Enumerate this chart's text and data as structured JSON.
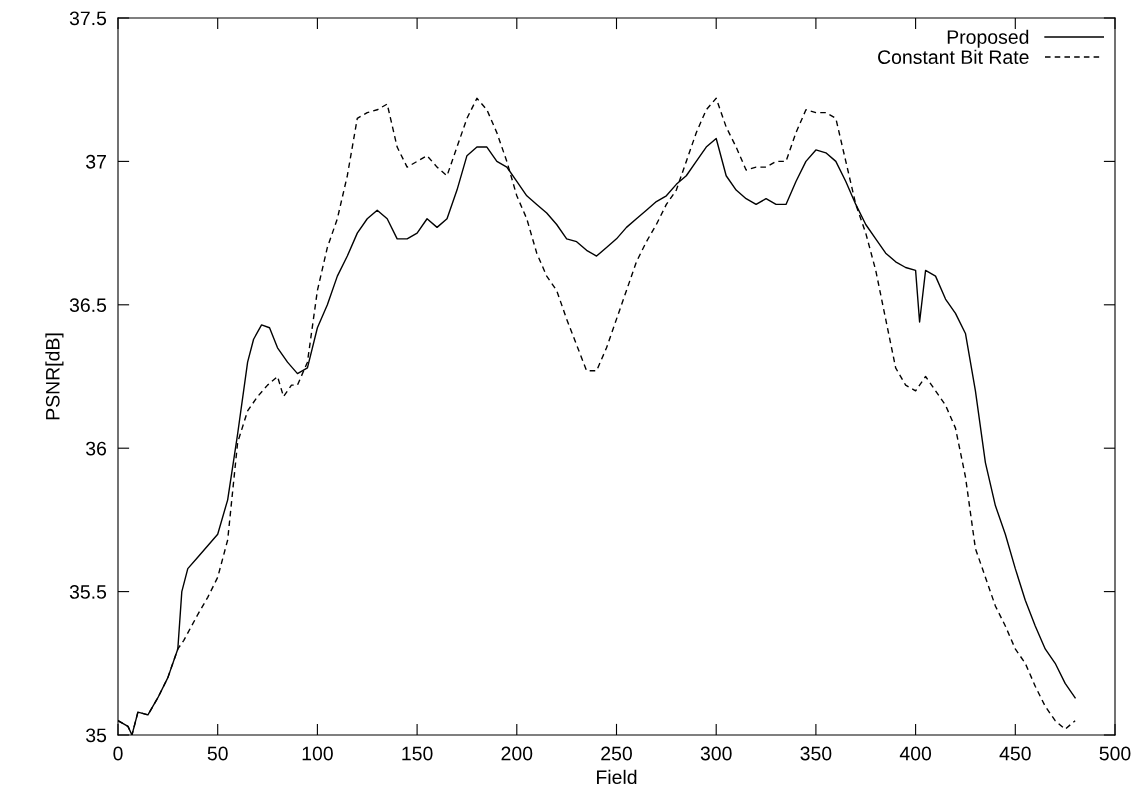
{
  "chart_data": {
    "type": "line",
    "xlabel": "Field",
    "ylabel": "PSNR[dB]",
    "xlim": [
      0,
      500
    ],
    "ylim": [
      35,
      37.5
    ],
    "xticks": [
      0,
      50,
      100,
      150,
      200,
      250,
      300,
      350,
      400,
      450,
      500
    ],
    "yticks": [
      35,
      35.5,
      36,
      36.5,
      37,
      37.5
    ],
    "grid": false,
    "legend": "top right",
    "marker": "none",
    "series": [
      {
        "name": "Proposed",
        "color": "#000000",
        "line_style": "solid",
        "x": [
          0,
          5,
          7,
          10,
          15,
          20,
          25,
          30,
          32,
          35,
          40,
          45,
          50,
          55,
          60,
          65,
          68,
          72,
          76,
          80,
          85,
          90,
          95,
          100,
          105,
          110,
          115,
          120,
          125,
          130,
          135,
          140,
          145,
          150,
          155,
          160,
          165,
          170,
          175,
          180,
          185,
          190,
          195,
          200,
          205,
          210,
          215,
          220,
          225,
          230,
          235,
          240,
          245,
          250,
          255,
          260,
          265,
          270,
          275,
          280,
          285,
          290,
          295,
          300,
          305,
          310,
          315,
          320,
          325,
          330,
          335,
          340,
          345,
          350,
          355,
          360,
          365,
          370,
          375,
          380,
          385,
          390,
          395,
          400,
          402,
          405,
          410,
          415,
          420,
          425,
          430,
          435,
          440,
          445,
          450,
          455,
          460,
          465,
          470,
          475,
          480
        ],
        "values": [
          35.05,
          35.03,
          35.0,
          35.08,
          35.07,
          35.13,
          35.2,
          35.3,
          35.5,
          35.58,
          35.62,
          35.66,
          35.7,
          35.82,
          36.05,
          36.3,
          36.38,
          36.43,
          36.42,
          36.35,
          36.3,
          36.26,
          36.28,
          36.42,
          36.5,
          36.6,
          36.67,
          36.75,
          36.8,
          36.83,
          36.8,
          36.73,
          36.73,
          36.75,
          36.8,
          36.77,
          36.8,
          36.9,
          37.02,
          37.05,
          37.05,
          37.0,
          36.98,
          36.93,
          36.88,
          36.85,
          36.82,
          36.78,
          36.73,
          36.72,
          36.69,
          36.67,
          36.7,
          36.73,
          36.77,
          36.8,
          36.83,
          36.86,
          36.88,
          36.92,
          36.95,
          37.0,
          37.05,
          37.08,
          36.95,
          36.9,
          36.87,
          36.85,
          36.87,
          36.85,
          36.85,
          36.93,
          37.0,
          37.04,
          37.03,
          37.0,
          36.93,
          36.85,
          36.78,
          36.73,
          36.68,
          36.65,
          36.63,
          36.62,
          36.44,
          36.62,
          36.6,
          36.52,
          36.47,
          36.4,
          36.2,
          35.95,
          35.8,
          35.7,
          35.58,
          35.47,
          35.38,
          35.3,
          35.25,
          35.18,
          35.13
        ]
      },
      {
        "name": "Constant Bit Rate",
        "color": "#000000",
        "line_style": "dashed",
        "x": [
          0,
          5,
          7,
          10,
          15,
          20,
          25,
          30,
          33,
          40,
          45,
          50,
          55,
          60,
          65,
          70,
          75,
          80,
          83,
          87,
          90,
          95,
          100,
          105,
          110,
          115,
          120,
          125,
          130,
          135,
          140,
          145,
          150,
          155,
          160,
          165,
          170,
          175,
          180,
          185,
          190,
          195,
          200,
          205,
          210,
          215,
          220,
          225,
          230,
          235,
          240,
          245,
          250,
          255,
          260,
          265,
          270,
          275,
          280,
          285,
          290,
          295,
          300,
          305,
          310,
          315,
          320,
          325,
          330,
          335,
          340,
          345,
          350,
          355,
          360,
          365,
          370,
          375,
          380,
          385,
          390,
          395,
          400,
          405,
          410,
          415,
          420,
          425,
          430,
          435,
          440,
          445,
          450,
          455,
          460,
          465,
          470,
          475,
          480
        ],
        "values": [
          35.05,
          35.03,
          35.0,
          35.08,
          35.07,
          35.13,
          35.2,
          35.3,
          35.33,
          35.42,
          35.48,
          35.55,
          35.68,
          36.02,
          36.13,
          36.18,
          36.22,
          36.25,
          36.18,
          36.22,
          36.22,
          36.3,
          36.55,
          36.7,
          36.8,
          36.95,
          37.15,
          37.17,
          37.18,
          37.2,
          37.05,
          36.98,
          37.0,
          37.02,
          36.98,
          36.95,
          37.05,
          37.15,
          37.22,
          37.18,
          37.1,
          37.0,
          36.88,
          36.8,
          36.68,
          36.6,
          36.55,
          36.45,
          36.36,
          36.27,
          36.27,
          36.35,
          36.45,
          36.55,
          36.65,
          36.72,
          36.78,
          36.85,
          36.9,
          37.0,
          37.1,
          37.18,
          37.22,
          37.12,
          37.05,
          36.97,
          36.98,
          36.98,
          37.0,
          37.0,
          37.1,
          37.18,
          37.17,
          37.17,
          37.15,
          37.0,
          36.85,
          36.75,
          36.62,
          36.45,
          36.28,
          36.22,
          36.2,
          36.25,
          36.2,
          36.15,
          36.07,
          35.9,
          35.65,
          35.55,
          35.45,
          35.38,
          35.3,
          35.25,
          35.17,
          35.1,
          35.05,
          35.02,
          35.05
        ]
      }
    ]
  }
}
